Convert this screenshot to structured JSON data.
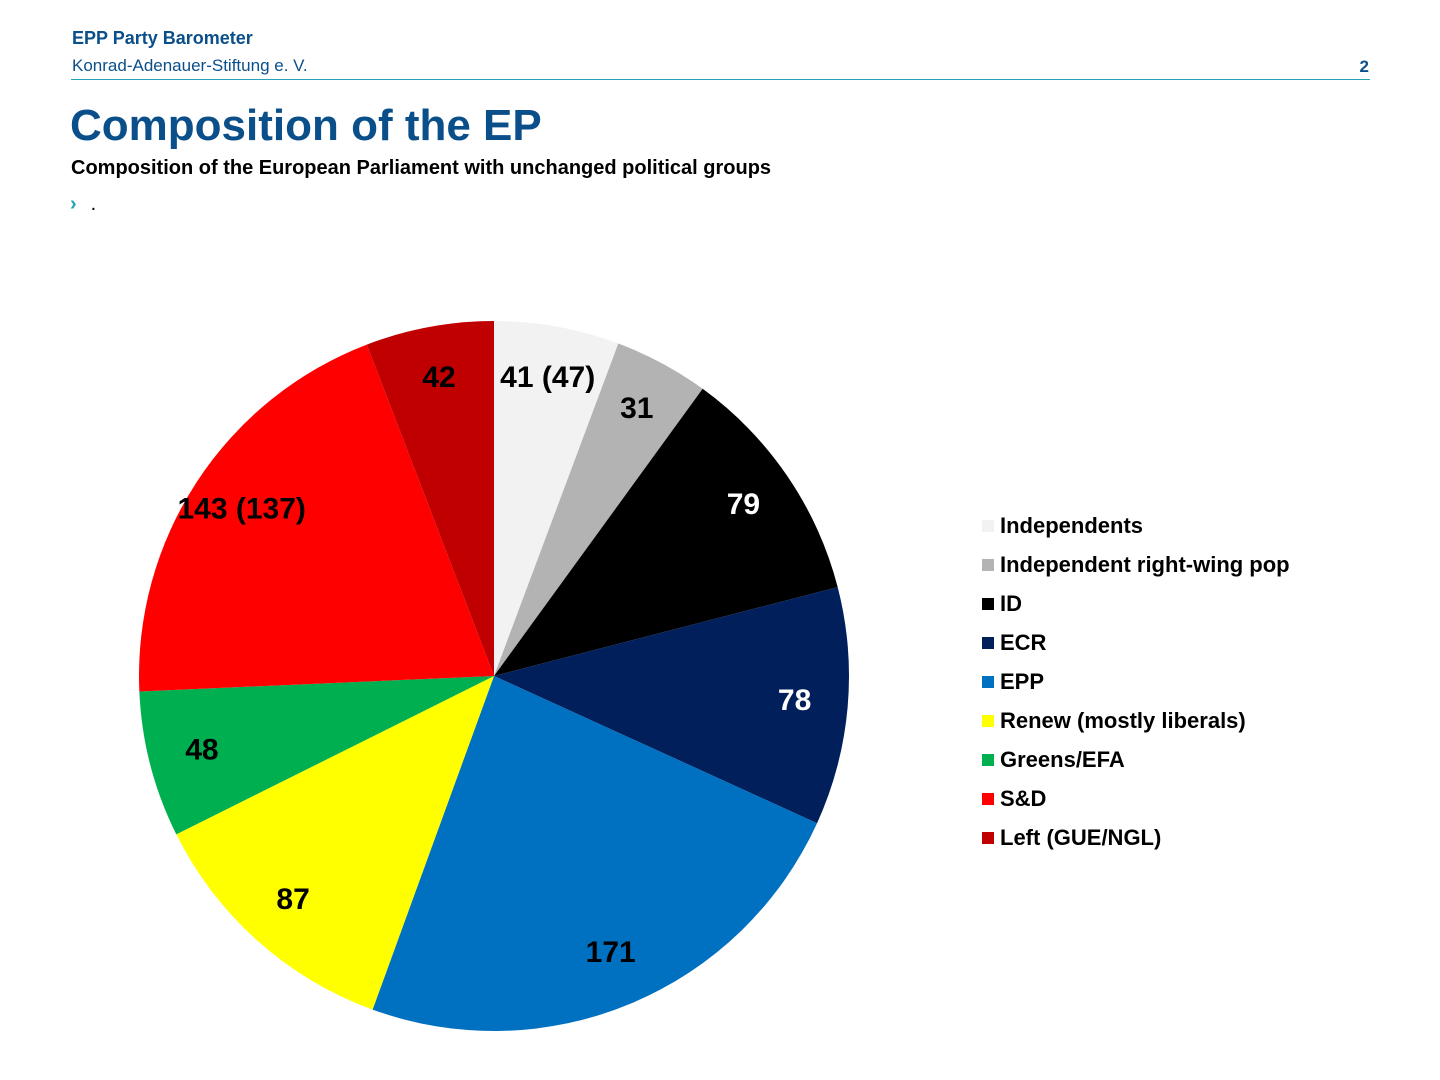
{
  "header": {
    "org_title": "EPP Party Barometer",
    "org_subtitle": "Konrad-Adenauer-Stiftung e. V.",
    "page_number": "2"
  },
  "slide": {
    "title": "Composition of the EP",
    "subtitle": "Composition of the European Parliament with unchanged political groups",
    "bullet_icon": "chevron-right-icon",
    "bullet_text": "."
  },
  "colors": {
    "brand": "#0b4f8a",
    "accent": "#23a3b8"
  },
  "chart_data": {
    "type": "pie",
    "title": "",
    "legend_position": "right",
    "slices": [
      {
        "name": "Independents",
        "value": 41,
        "label": "41 (47)",
        "color": "#f2f2f2",
        "label_color": "#000000"
      },
      {
        "name": "Independent right-wing pop",
        "value": 31,
        "label": "31",
        "color": "#b3b3b3",
        "label_color": "#000000"
      },
      {
        "name": "ID",
        "value": 79,
        "label": "79",
        "color": "#000000",
        "label_color": "#ffffff"
      },
      {
        "name": "ECR",
        "value": 78,
        "label": "78",
        "color": "#001f5b",
        "label_color": "#ffffff"
      },
      {
        "name": "EPP",
        "value": 171,
        "label": "171",
        "color": "#0070c0",
        "label_color": "#000000"
      },
      {
        "name": "Renew (mostly liberals)",
        "value": 87,
        "label": "87",
        "color": "#ffff00",
        "label_color": "#000000"
      },
      {
        "name": "Greens/EFA",
        "value": 48,
        "label": "48",
        "color": "#00b050",
        "label_color": "#000000"
      },
      {
        "name": "S&D",
        "value": 143,
        "label": "143 (137)",
        "color": "#ff0000",
        "label_color": "#000000"
      },
      {
        "name": "Left (GUE/NGL)",
        "value": 42,
        "label": "42",
        "color": "#c00000",
        "label_color": "#000000"
      }
    ]
  }
}
